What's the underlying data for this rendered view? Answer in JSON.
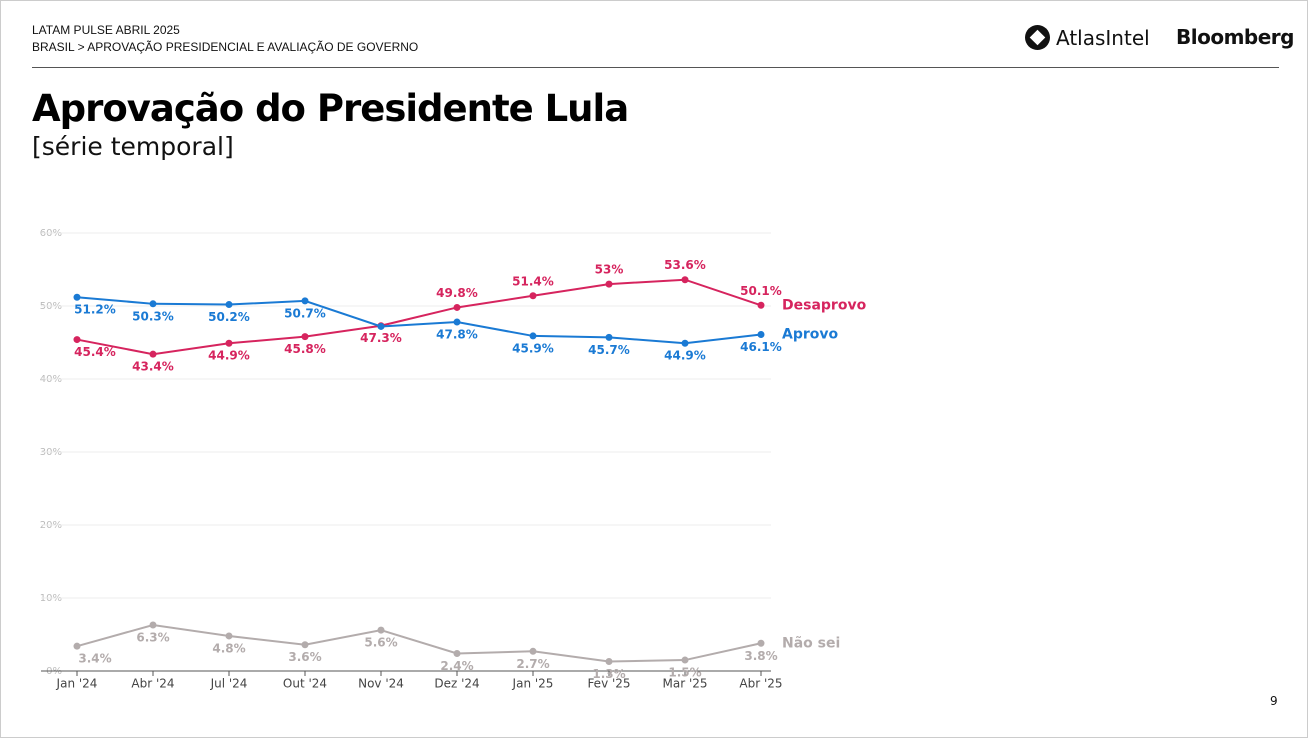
{
  "header": {
    "kicker": "LATAM PULSE ABRIL 2025",
    "breadcrumb": "BRASIL > APROVAÇÃO PRESIDENCIAL E AVALIAÇÃO DE GOVERNO",
    "logo_atlas": "AtlasIntel",
    "logo_bloomberg": "Bloomberg"
  },
  "page_number": "9",
  "chart_data": {
    "type": "line",
    "title": "Aprovação do Presidente Lula",
    "subtitle": "[série temporal]",
    "categories": [
      "Jan '24",
      "Abr '24",
      "Jul '24",
      "Out '24",
      "Nov '24",
      "Dez '24",
      "Jan '25",
      "Fev '25",
      "Mar '25",
      "Abr '25"
    ],
    "ylim": [
      0,
      60
    ],
    "yticks": [
      {
        "value": 0,
        "label": "0%"
      },
      {
        "value": 10,
        "label": "10%"
      },
      {
        "value": 20,
        "label": "20%"
      },
      {
        "value": 30,
        "label": "30%"
      },
      {
        "value": 40,
        "label": "40%"
      },
      {
        "value": 50,
        "label": "50%"
      },
      {
        "value": 60,
        "label": "60%"
      }
    ],
    "grid": true,
    "series": [
      {
        "name": "Desaprovo",
        "color": "#d6245e",
        "values": [
          45.4,
          43.4,
          44.9,
          45.8,
          47.3,
          49.8,
          51.4,
          53,
          53.6,
          50.1
        ],
        "value_labels": [
          "45.4%",
          "43.4%",
          "44.9%",
          "45.8%",
          "47.3%",
          "49.8%",
          "51.4%",
          "53%",
          "53.6%",
          "50.1%"
        ]
      },
      {
        "name": "Aprovo",
        "color": "#1a7ad4",
        "values": [
          51.2,
          50.3,
          50.2,
          50.7,
          47.2,
          47.8,
          45.9,
          45.7,
          44.9,
          46.1
        ],
        "value_labels": [
          "51.2%",
          "50.3%",
          "50.2%",
          "50.7%",
          null,
          "47.8%",
          "45.9%",
          "45.7%",
          "44.9%",
          "46.1%"
        ]
      },
      {
        "name": "Não sei",
        "color": "#b3acac",
        "values": [
          3.4,
          6.3,
          4.8,
          3.6,
          5.6,
          2.4,
          2.7,
          1.3,
          1.5,
          3.8
        ],
        "value_labels": [
          "3.4%",
          "6.3%",
          "4.8%",
          "3.6%",
          "5.6%",
          "2.4%",
          "2.7%",
          "1.3%",
          "1.5%",
          "3.8%"
        ]
      }
    ]
  }
}
